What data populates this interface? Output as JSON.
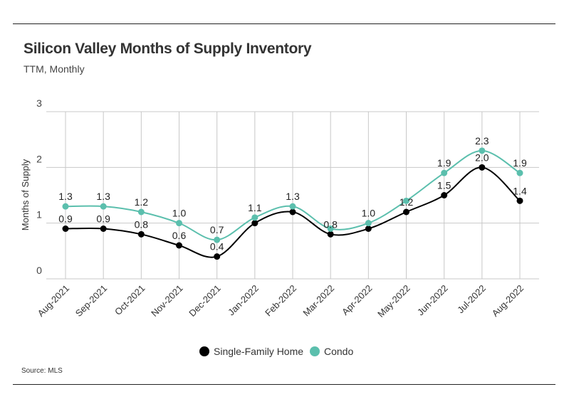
{
  "chart_data": {
    "type": "line",
    "title": "Silicon Valley Months of Supply Inventory",
    "subtitle": "TTM, Monthly",
    "ylabel": "Months of Supply",
    "xlabel": "",
    "ylim": [
      0,
      3
    ],
    "yticks": [
      "0",
      "1",
      "2",
      "3"
    ],
    "grid": true,
    "legend_position": "bottom",
    "categories": [
      "Aug-2021",
      "Sep-2021",
      "Oct-2021",
      "Nov-2021",
      "Dec-2021",
      "Jan-2022",
      "Feb-2022",
      "Mar-2022",
      "Apr-2022",
      "May-2022",
      "Jun-2022",
      "Jul-2022",
      "Aug-2022"
    ],
    "series": [
      {
        "name": "Single-Family Home",
        "color": "#000000",
        "values": [
          0.9,
          0.9,
          0.8,
          0.6,
          0.4,
          1.0,
          1.2,
          0.8,
          0.9,
          1.2,
          1.5,
          2.0,
          1.4
        ],
        "labels": [
          "0.9",
          "0.9",
          "0.8",
          "0.6",
          "0.4",
          null,
          null,
          "0.8",
          null,
          "1.2",
          "1.5",
          "2.0",
          "1.4"
        ]
      },
      {
        "name": "Condo",
        "color": "#5bbfad",
        "values": [
          1.3,
          1.3,
          1.2,
          1.0,
          0.7,
          1.1,
          1.3,
          0.9,
          1.0,
          1.4,
          1.9,
          2.3,
          1.9
        ],
        "labels": [
          "1.3",
          "1.3",
          "1.2",
          "1.0",
          "0.7",
          "1.1",
          "1.3",
          null,
          "1.0",
          null,
          "1.9",
          "2.3",
          "1.9"
        ]
      }
    ],
    "source": "Source:  MLS"
  }
}
